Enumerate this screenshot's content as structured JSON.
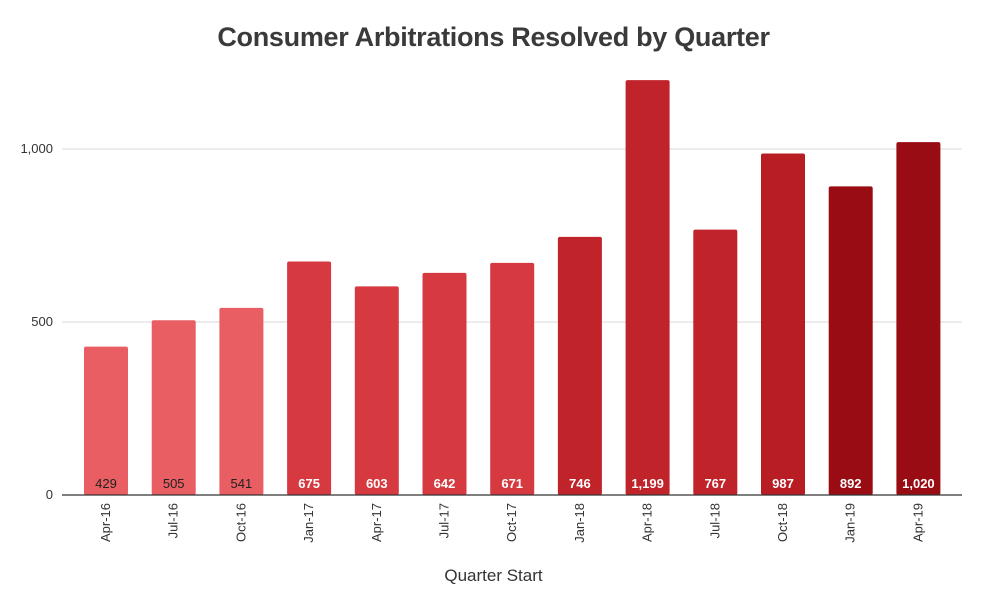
{
  "chart_data": {
    "type": "bar",
    "title": "Consumer Arbitrations Resolved by Quarter",
    "xlabel": "Quarter Start",
    "ylabel": "",
    "ylim": [
      0,
      1250
    ],
    "yticks": [
      0,
      500,
      1000
    ],
    "ytick_labels": [
      "0",
      "500",
      "1,000"
    ],
    "grid": true,
    "categories": [
      "Apr-16",
      "Jul-16",
      "Oct-16",
      "Jan-17",
      "Apr-17",
      "Jul-17",
      "Oct-17",
      "Jan-18",
      "Apr-18",
      "Jul-18",
      "Oct-18",
      "Jan-19",
      "Apr-19"
    ],
    "values": [
      429,
      505,
      541,
      675,
      603,
      642,
      671,
      746,
      1199,
      767,
      987,
      892,
      1020
    ],
    "value_labels": [
      "429",
      "505",
      "541",
      "675",
      "603",
      "642",
      "671",
      "746",
      "1,199",
      "767",
      "987",
      "892",
      "1,020"
    ],
    "bar_colors": [
      "#e85e62",
      "#e85e62",
      "#e85e62",
      "#d63a40",
      "#d63a40",
      "#d63a40",
      "#d63a40",
      "#c0232a",
      "#c0232a",
      "#c0232a",
      "#b81d24",
      "#9a0c13",
      "#9a0c13"
    ],
    "label_colors": [
      "#222222",
      "#222222",
      "#222222",
      "#ffffff",
      "#ffffff",
      "#ffffff",
      "#ffffff",
      "#ffffff",
      "#ffffff",
      "#ffffff",
      "#ffffff",
      "#ffffff",
      "#ffffff"
    ]
  }
}
